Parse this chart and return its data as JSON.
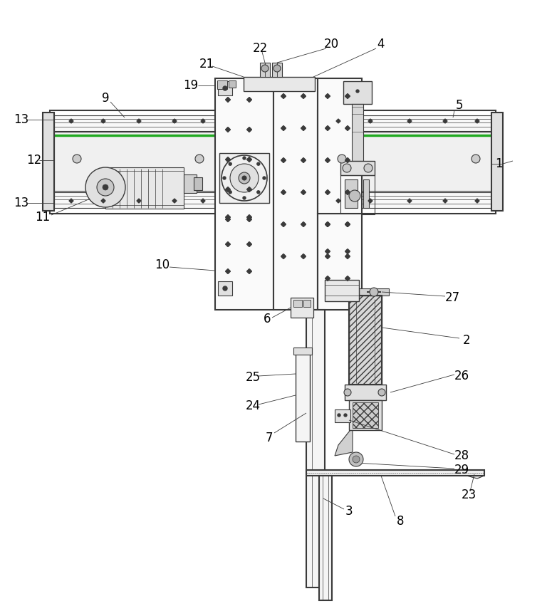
{
  "bg_color": "#ffffff",
  "lc": "#3a3a3a",
  "lw": 0.8,
  "tlw": 1.5,
  "figsize": [
    7.68,
    8.58
  ],
  "dpi": 100
}
